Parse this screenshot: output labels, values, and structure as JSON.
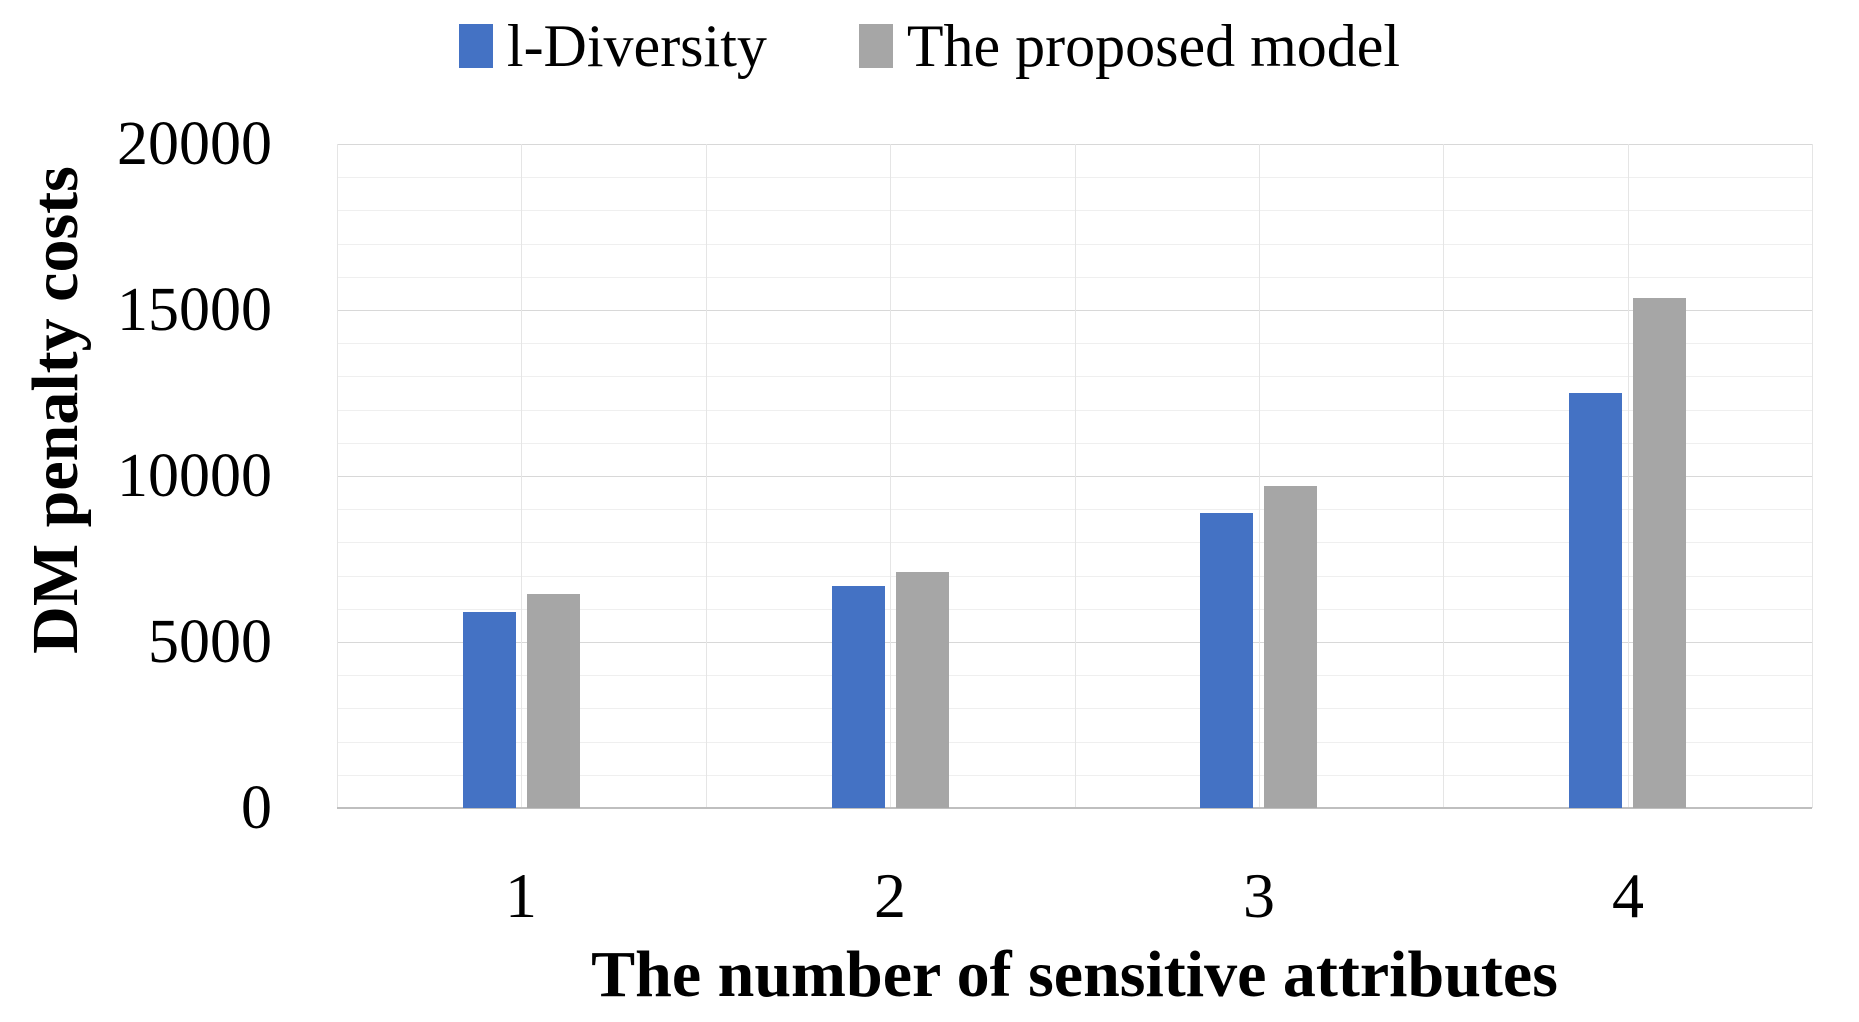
{
  "chart_data": {
    "type": "bar",
    "title": "",
    "categories": [
      "1",
      "2",
      "3",
      "4"
    ],
    "series": [
      {
        "key": "l-diversity",
        "name": "l-Diversity",
        "color": "#4472C4",
        "values": [
          5900,
          6700,
          8900,
          12500
        ]
      },
      {
        "key": "proposed-model",
        "name": "The proposed model",
        "color": "#A6A6A6",
        "values": [
          6450,
          7100,
          9700,
          15350
        ]
      }
    ],
    "xlabel": "The number of sensitive attributes",
    "ylabel": "DM penalty costs",
    "ylim": [
      0,
      20000
    ],
    "y_major_step": 5000,
    "y_minor_step": 1000,
    "y_tick_labels": [
      "0",
      "5000",
      "10000",
      "15000",
      "20000"
    ],
    "legend_position": "top",
    "grid": {
      "horizontal": "major every 5000 with minor every 1000",
      "vertical": "line at every category boundary and category center"
    }
  }
}
